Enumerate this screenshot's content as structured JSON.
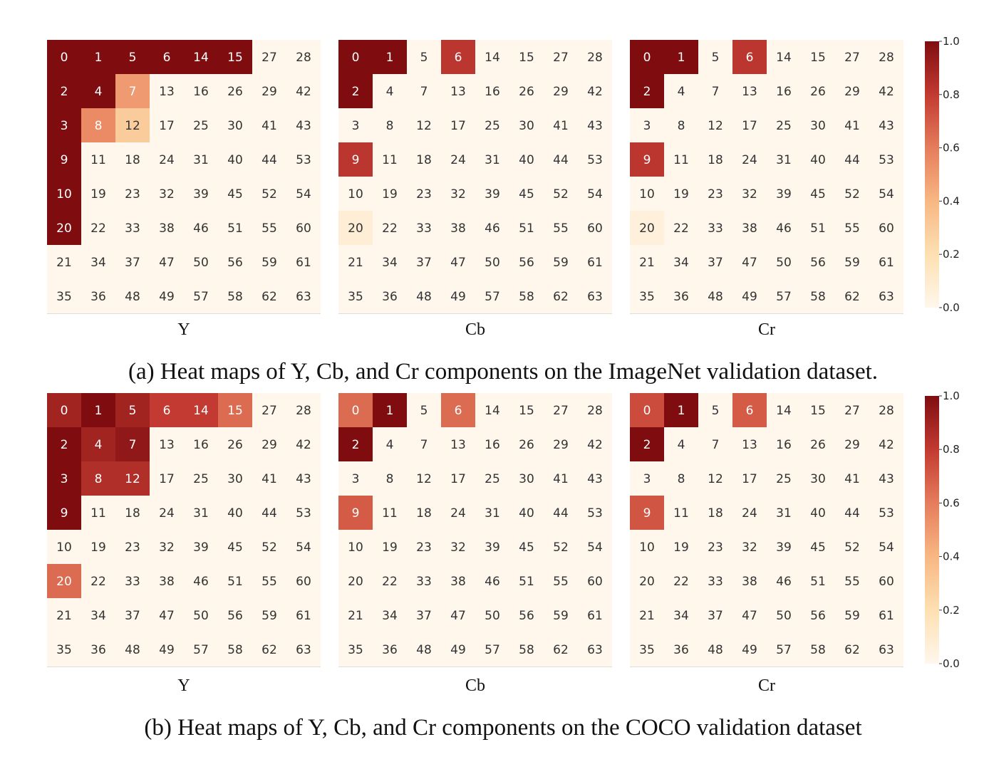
{
  "zigzag": [
    [
      0,
      1,
      5,
      6,
      14,
      15,
      27,
      28
    ],
    [
      2,
      4,
      7,
      13,
      16,
      26,
      29,
      42
    ],
    [
      3,
      8,
      12,
      17,
      25,
      30,
      41,
      43
    ],
    [
      9,
      11,
      18,
      24,
      31,
      40,
      44,
      53
    ],
    [
      10,
      19,
      23,
      32,
      39,
      45,
      52,
      54
    ],
    [
      20,
      22,
      33,
      38,
      46,
      51,
      55,
      60
    ],
    [
      21,
      34,
      37,
      47,
      50,
      56,
      59,
      61
    ],
    [
      35,
      36,
      48,
      49,
      57,
      58,
      62,
      63
    ]
  ],
  "colorbar": {
    "ticks": [
      "0.0",
      "0.2",
      "0.4",
      "0.6",
      "0.8",
      "1.0"
    ],
    "range": [
      0,
      1
    ]
  },
  "chart_data": [
    {
      "type": "heatmap",
      "panel": "a",
      "caption": "(a) Heat maps of Y, Cb, and Cr components on the ImageNet validation dataset.",
      "maps": [
        {
          "label": "Y",
          "highlights": {
            "0": 1.0,
            "1": 1.0,
            "5": 1.0,
            "6": 1.0,
            "14": 1.0,
            "15": 1.0,
            "2": 1.0,
            "3": 1.0,
            "9": 1.0,
            "10": 1.0,
            "20": 1.0,
            "4": 1.0,
            "7": 0.5,
            "8": 0.55,
            "12": 0.3
          }
        },
        {
          "label": "Cb",
          "highlights": {
            "0": 1.0,
            "1": 1.0,
            "6": 0.82,
            "2": 1.0,
            "9": 0.82,
            "20": 0.08
          }
        },
        {
          "label": "Cr",
          "highlights": {
            "0": 1.0,
            "1": 1.0,
            "6": 0.82,
            "2": 1.0,
            "9": 0.82,
            "20": 0.06
          }
        }
      ]
    },
    {
      "type": "heatmap",
      "panel": "b",
      "caption": "(b) Heat maps of Y, Cb, and Cr components on the COCO validation dataset",
      "maps": [
        {
          "label": "Y",
          "highlights": {
            "0": 0.9,
            "1": 1.0,
            "5": 0.9,
            "6": 0.8,
            "14": 0.8,
            "15": 0.65,
            "2": 1.0,
            "4": 0.9,
            "7": 0.95,
            "3": 1.0,
            "8": 0.85,
            "12": 0.85,
            "9": 1.0,
            "20": 0.65
          }
        },
        {
          "label": "Cb",
          "highlights": {
            "0": 0.65,
            "1": 1.0,
            "6": 0.65,
            "2": 1.0,
            "9": 0.7
          }
        },
        {
          "label": "Cr",
          "highlights": {
            "0": 0.75,
            "1": 1.0,
            "6": 0.7,
            "2": 1.0,
            "9": 0.72
          }
        }
      ]
    }
  ]
}
